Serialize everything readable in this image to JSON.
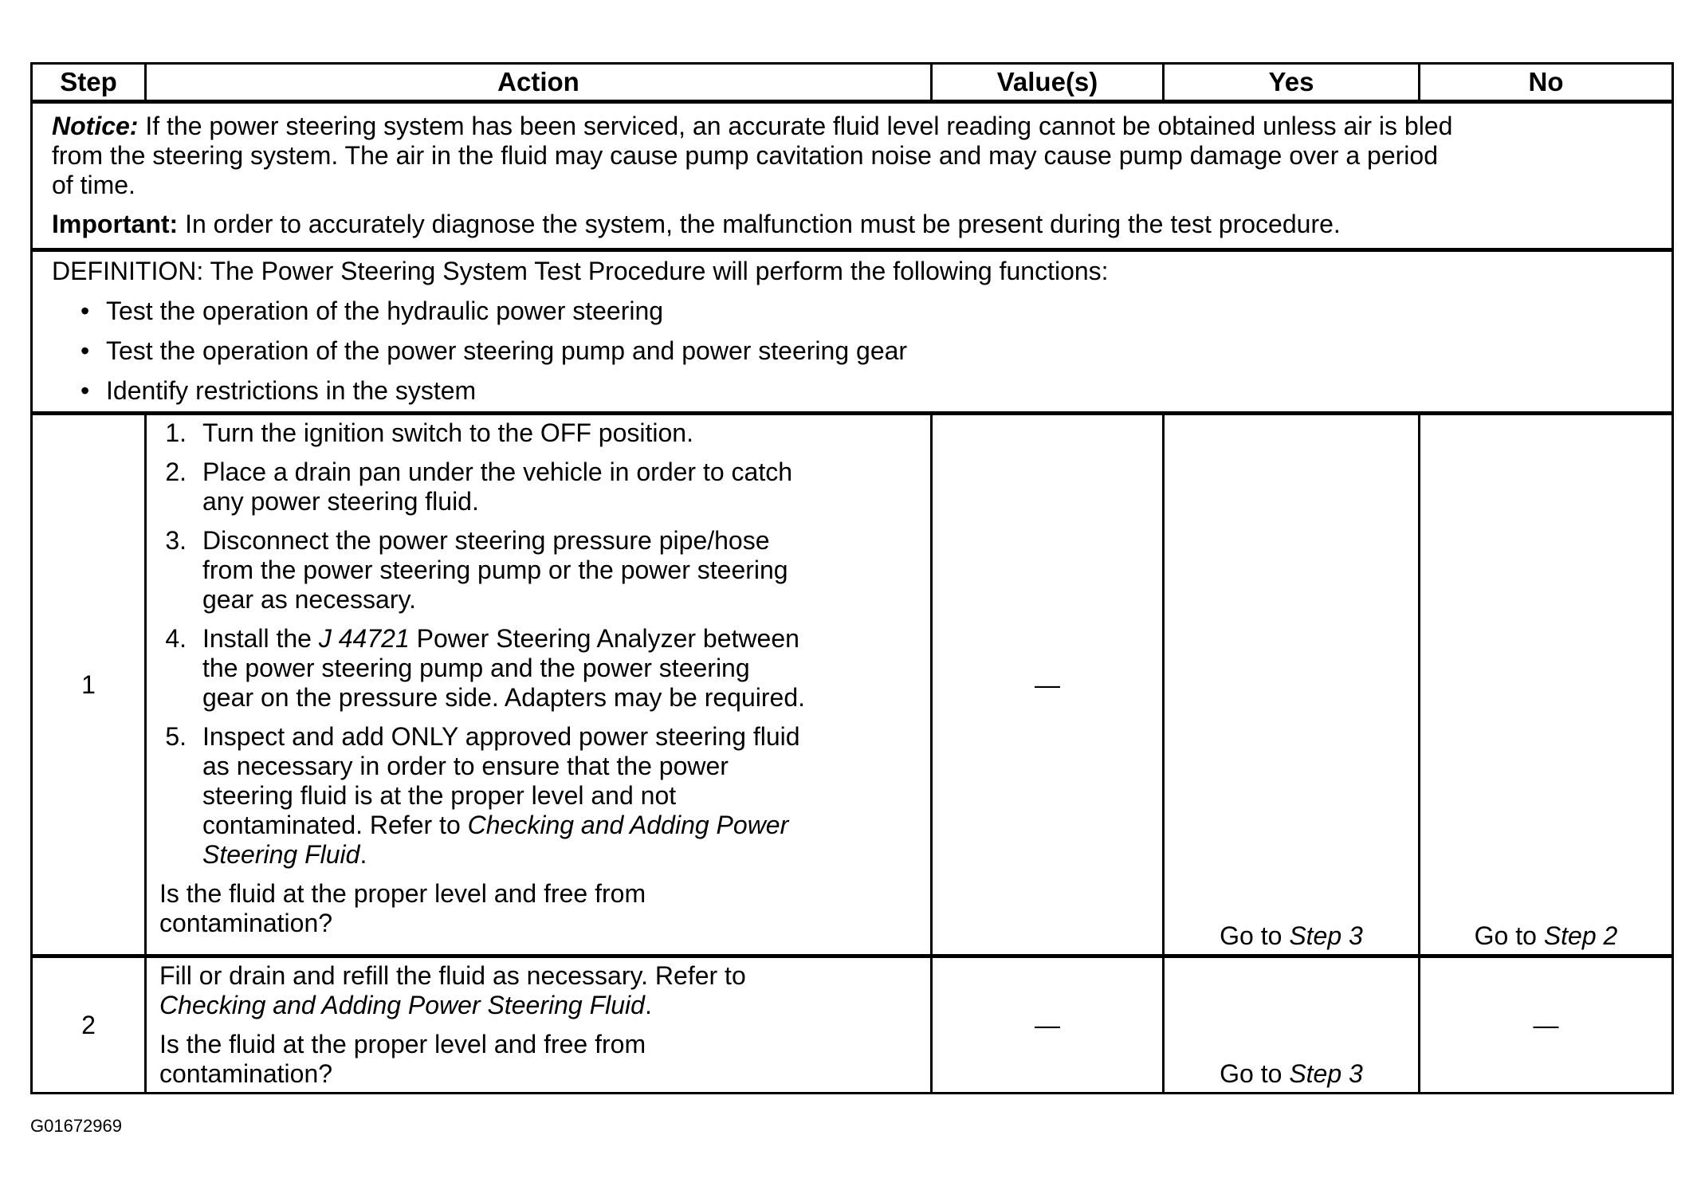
{
  "headers": {
    "step": "Step",
    "action": "Action",
    "values": "Value(s)",
    "yes": "Yes",
    "no": "No"
  },
  "notice": {
    "label": "Notice:",
    "text": "If the power steering system has been serviced, an accurate fluid level reading cannot be obtained unless air is bled",
    "line2": "from the steering system. The air in the fluid may cause pump cavitation noise and may cause pump damage over a period",
    "line3": "of time."
  },
  "important": {
    "label": "Important:",
    "text": "In order to accurately diagnose the system, the malfunction must be present during the test procedure."
  },
  "definition": {
    "text": "DEFINITION: The Power Steering System Test Procedure will perform the following functions:",
    "bullets": [
      "Test the operation of the hydraulic power steering",
      "Test the operation of the power steering pump and power steering gear",
      "Identify restrictions in the system"
    ]
  },
  "step1": {
    "step": "1",
    "items": [
      {
        "n": "1.",
        "l1": "Turn the ignition switch to the OFF position."
      },
      {
        "n": "2.",
        "l1": "Place a drain pan under the vehicle in order to catch",
        "l2": "any power steering fluid."
      },
      {
        "n": "3.",
        "l1": "Disconnect the power steering pressure pipe/hose",
        "l2": "from the power steering pump or the power steering",
        "l3": "gear as necessary."
      },
      {
        "n": "4.",
        "l1a": "Install the ",
        "l1i": "J 44721",
        "l1b": " Power Steering Analyzer between",
        "l2": "the power steering pump and the power steering",
        "l3": "gear on the pressure side. Adapters may be required."
      },
      {
        "n": "5.",
        "l1": "Inspect and add ONLY approved power steering fluid",
        "l2": "as necessary in order to ensure that the power",
        "l3": "steering fluid is at the proper level and not",
        "l4a": "contaminated. Refer to ",
        "l4i": "Checking and Adding Power",
        "l5i": "Steering Fluid",
        "l5b": "."
      }
    ],
    "question1": "Is the fluid at the proper level and free from",
    "question2": "contamination?",
    "value": "—",
    "yes_prefix": "Go to ",
    "yes_step": "Step 3",
    "no_prefix": "Go to ",
    "no_step": "Step 2"
  },
  "step2": {
    "step": "2",
    "l1": "Fill or drain and refill the fluid as necessary. Refer to",
    "l2i": "Checking and Adding Power Steering Fluid",
    "l2b": ".",
    "question1": "Is the fluid at the proper level and free from",
    "question2": "contamination?",
    "value": "—",
    "yes_prefix": "Go to ",
    "yes_step": "Step 3",
    "no": "—"
  },
  "figure_id": "G01672969"
}
